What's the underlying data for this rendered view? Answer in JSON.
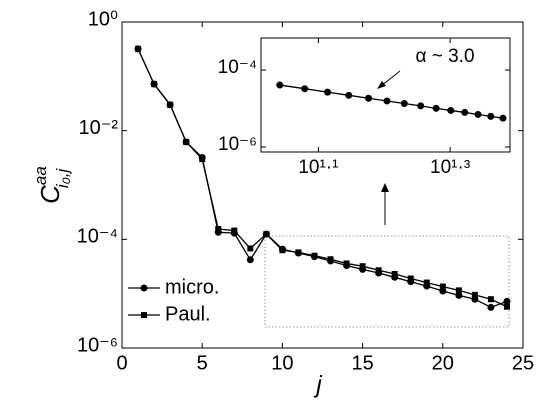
{
  "chart_data": [
    {
      "type": "line",
      "xlabel": "j",
      "ylabel": {
        "base": "C",
        "sup": "aa",
        "sub": "i₀,j"
      },
      "ylog": true,
      "xlim": [
        0,
        25
      ],
      "xticks": [
        0,
        5,
        10,
        15,
        20,
        25
      ],
      "ylim": [
        1e-06,
        1
      ],
      "yticks": [
        {
          "value": 1e-06,
          "label": "10⁻⁶"
        },
        {
          "value": 0.0001,
          "label": "10⁻⁴"
        },
        {
          "value": 0.01,
          "label": "10⁻²"
        },
        {
          "value": 1,
          "label": "10⁰"
        }
      ],
      "legend": "lower left",
      "series": [
        {
          "name": "micro.",
          "color": "#000000",
          "marker": "o",
          "x": [
            1,
            2,
            3,
            4,
            5,
            6,
            7,
            8,
            9,
            10,
            11,
            12,
            13,
            14,
            15,
            16,
            17,
            18,
            19,
            20,
            21,
            22,
            23,
            24
          ],
          "values": [
            0.32,
            0.072,
            0.03,
            0.0062,
            0.0032,
            0.000135,
            0.00013,
            4.2e-05,
            0.000125,
            6.6e-05,
            5.6e-05,
            4.8e-05,
            4e-05,
            3.3e-05,
            2.8e-05,
            2.4e-05,
            2e-05,
            1.66e-05,
            1.38e-05,
            1.12e-05,
            9.3e-06,
            7.9e-06,
            5.6e-06,
            7.2e-06
          ]
        },
        {
          "name": "Paul.",
          "color": "#000000",
          "marker": "s",
          "x": [
            1,
            2,
            3,
            4,
            5,
            6,
            7,
            8,
            9,
            10,
            11,
            12,
            13,
            14,
            15,
            16,
            17,
            18,
            19,
            20,
            21,
            22,
            23,
            24
          ],
          "values": [
            0.32,
            0.072,
            0.03,
            0.0062,
            0.003,
            0.000155,
            0.000145,
            6.8e-05,
            0.000125,
            6.3e-05,
            5.75e-05,
            5e-05,
            4.3e-05,
            3.6e-05,
            3.2e-05,
            2.7e-05,
            2.3e-05,
            1.9e-05,
            1.6e-05,
            1.35e-05,
            1.15e-05,
            9.5e-06,
            7.9e-06,
            5.75e-06
          ]
        }
      ]
    },
    {
      "type": "line",
      "xlog": true,
      "ylog": true,
      "xlim": [
        10.3,
        24.6
      ],
      "xticks": [
        {
          "value": 12.589,
          "label": "10¹·¹"
        },
        {
          "value": 19.953,
          "label": "10¹·³"
        }
      ],
      "ylim": [
        0.00068,
        7.4e-07
      ],
      "yticks": [
        {
          "value": 1e-06,
          "label": "10⁻⁶"
        },
        {
          "value": 0.0001,
          "label": "10⁻⁴"
        }
      ],
      "annotation": "α ~ 3.0",
      "series": [
        {
          "color": "#000000",
          "marker": "o",
          "x": [
            11,
            12,
            13,
            14,
            15,
            16,
            17,
            18,
            19,
            20,
            21,
            22,
            23,
            24
          ],
          "values": [
            4.07e-05,
            3.27e-05,
            2.66e-05,
            2.2e-05,
            1.85e-05,
            1.57e-05,
            1.35e-05,
            1.17e-05,
            1.01e-05,
            8.9e-06,
            7.9e-06,
            7e-06,
            6.25e-06,
            5.6e-06
          ]
        }
      ]
    }
  ]
}
